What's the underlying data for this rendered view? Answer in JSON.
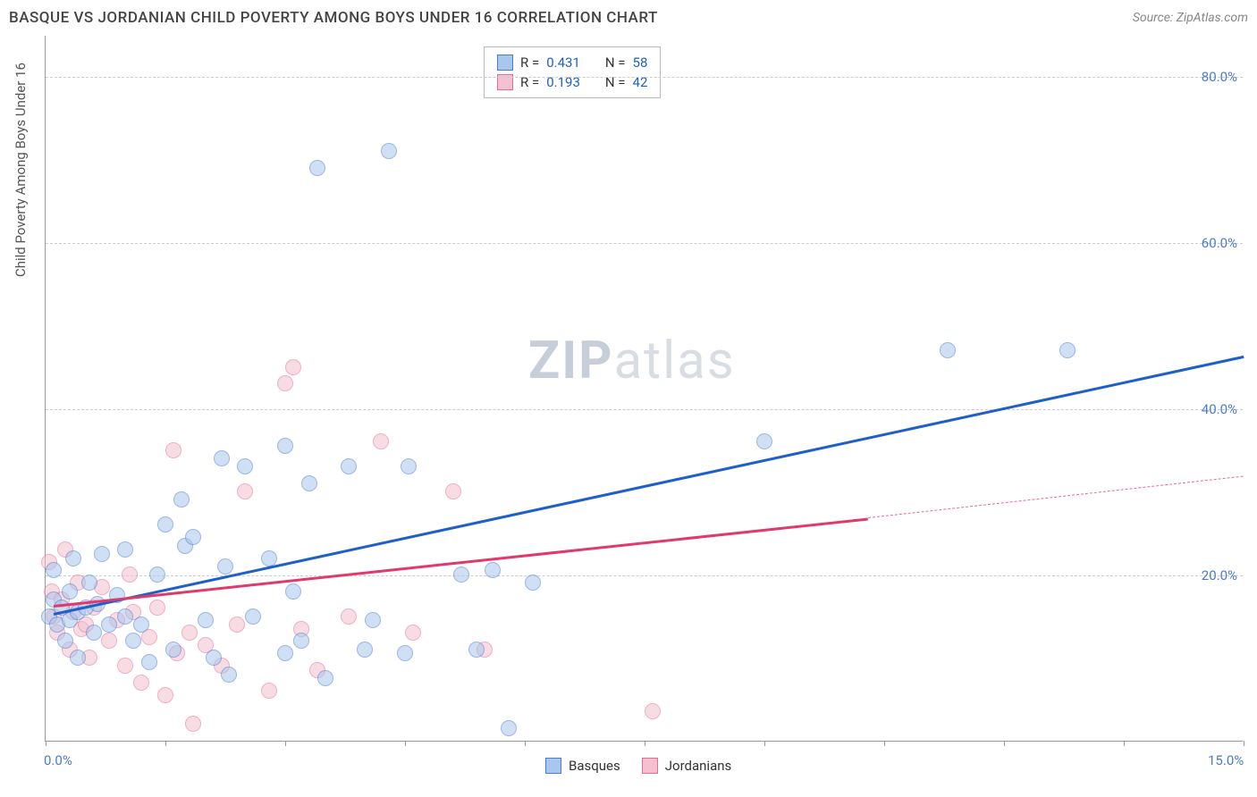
{
  "title": "BASQUE VS JORDANIAN CHILD POVERTY AMONG BOYS UNDER 16 CORRELATION CHART",
  "source": "Source: ZipAtlas.com",
  "ylabel": "Child Poverty Among Boys Under 16",
  "watermark_bold": "ZIP",
  "watermark_light": "atlas",
  "chart": {
    "type": "scatter",
    "xlim": [
      0,
      15
    ],
    "ylim": [
      0,
      85
    ],
    "background_color": "#ffffff",
    "grid_color": "#cccccc",
    "axis_color": "#999999",
    "tick_label_color": "#4a7bd0",
    "xticks": [
      0,
      1.5,
      3,
      4.5,
      6,
      7.5,
      9,
      10.5,
      12,
      13.5,
      15
    ],
    "xtick_labels": {
      "0": "0.0%",
      "15": "15.0%"
    },
    "yticks": [
      20,
      40,
      60,
      80
    ],
    "ytick_labels": {
      "20": "20.0%",
      "40": "40.0%",
      "60": "60.0%",
      "80": "80.0%"
    },
    "label_fontsize": 15,
    "point_radius": 9,
    "point_opacity": 0.55
  },
  "series": {
    "basques": {
      "label": "Basques",
      "fill": "#a9c6ec",
      "stroke": "#4a7bd0",
      "R": "0.431",
      "N": "58",
      "trend": {
        "x1": 0.1,
        "y1": 15.5,
        "x2": 15,
        "y2": 46.5,
        "color": "#1f5fc9",
        "width": 2.5
      },
      "points": [
        [
          0.05,
          15
        ],
        [
          0.1,
          17
        ],
        [
          0.1,
          20.5
        ],
        [
          0.15,
          14
        ],
        [
          0.2,
          16
        ],
        [
          0.25,
          12
        ],
        [
          0.3,
          18
        ],
        [
          0.3,
          14.5
        ],
        [
          0.35,
          22
        ],
        [
          0.4,
          15.5
        ],
        [
          0.4,
          10
        ],
        [
          0.5,
          16
        ],
        [
          0.55,
          19
        ],
        [
          0.6,
          13
        ],
        [
          0.65,
          16.5
        ],
        [
          0.7,
          22.5
        ],
        [
          0.8,
          14
        ],
        [
          0.9,
          17.5
        ],
        [
          1.0,
          23
        ],
        [
          1.0,
          15
        ],
        [
          1.1,
          12
        ],
        [
          1.2,
          14
        ],
        [
          1.3,
          9.5
        ],
        [
          1.4,
          20
        ],
        [
          1.5,
          26
        ],
        [
          1.6,
          11
        ],
        [
          1.7,
          29
        ],
        [
          1.75,
          23.5
        ],
        [
          1.85,
          24.5
        ],
        [
          2.0,
          14.5
        ],
        [
          2.1,
          10
        ],
        [
          2.2,
          34
        ],
        [
          2.25,
          21
        ],
        [
          2.3,
          8
        ],
        [
          2.5,
          33
        ],
        [
          2.6,
          15
        ],
        [
          2.8,
          22
        ],
        [
          3.0,
          35.5
        ],
        [
          3.0,
          10.5
        ],
        [
          3.1,
          18
        ],
        [
          3.2,
          12
        ],
        [
          3.3,
          31
        ],
        [
          3.4,
          69
        ],
        [
          3.5,
          7.5
        ],
        [
          3.8,
          33
        ],
        [
          4.0,
          11
        ],
        [
          4.1,
          14.5
        ],
        [
          4.3,
          71
        ],
        [
          4.5,
          10.5
        ],
        [
          4.55,
          33
        ],
        [
          5.2,
          20
        ],
        [
          5.4,
          11
        ],
        [
          5.6,
          20.5
        ],
        [
          5.8,
          1.5
        ],
        [
          6.1,
          19
        ],
        [
          9.0,
          36
        ],
        [
          11.3,
          47
        ],
        [
          12.8,
          47
        ]
      ]
    },
    "jordanians": {
      "label": "Jordanians",
      "fill": "#f4c1cf",
      "stroke": "#e76b94",
      "R": "0.193",
      "N": "42",
      "trend": {
        "x1": 0.1,
        "y1": 16.5,
        "x2": 10.3,
        "y2": 27,
        "color": "#e03a6d",
        "width": 2.5
      },
      "trend_dash": {
        "x1": 10.3,
        "y1": 27,
        "x2": 15,
        "y2": 32,
        "color": "#e76b94",
        "width": 1
      },
      "points": [
        [
          0.05,
          21.5
        ],
        [
          0.08,
          18
        ],
        [
          0.1,
          15
        ],
        [
          0.15,
          13
        ],
        [
          0.2,
          17
        ],
        [
          0.25,
          23
        ],
        [
          0.3,
          11
        ],
        [
          0.35,
          15.5
        ],
        [
          0.4,
          19
        ],
        [
          0.45,
          13.5
        ],
        [
          0.5,
          14
        ],
        [
          0.55,
          10
        ],
        [
          0.6,
          16
        ],
        [
          0.7,
          18.5
        ],
        [
          0.8,
          12
        ],
        [
          0.9,
          14.5
        ],
        [
          1.0,
          9
        ],
        [
          1.05,
          20
        ],
        [
          1.1,
          15.5
        ],
        [
          1.2,
          7
        ],
        [
          1.3,
          12.5
        ],
        [
          1.4,
          16
        ],
        [
          1.5,
          5.5
        ],
        [
          1.6,
          35
        ],
        [
          1.65,
          10.5
        ],
        [
          1.8,
          13
        ],
        [
          1.85,
          2
        ],
        [
          2.0,
          11.5
        ],
        [
          2.2,
          9
        ],
        [
          2.4,
          14
        ],
        [
          2.5,
          30
        ],
        [
          2.8,
          6
        ],
        [
          3.0,
          43
        ],
        [
          3.1,
          45
        ],
        [
          3.2,
          13.5
        ],
        [
          3.4,
          8.5
        ],
        [
          3.8,
          15
        ],
        [
          4.2,
          36
        ],
        [
          4.6,
          13
        ],
        [
          5.1,
          30
        ],
        [
          5.5,
          11
        ],
        [
          7.6,
          3.5
        ]
      ]
    }
  },
  "legend_stats": {
    "R_label": "R =",
    "N_label": "N ="
  }
}
